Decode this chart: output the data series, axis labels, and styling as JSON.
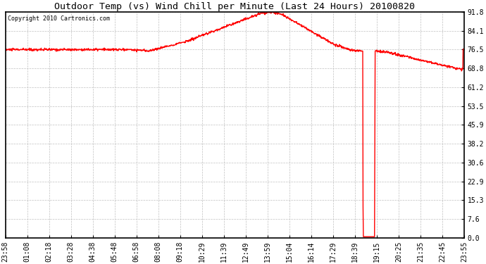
{
  "title": "Outdoor Temp (vs) Wind Chill per Minute (Last 24 Hours) 20100820",
  "copyright": "Copyright 2010 Cartronics.com",
  "yticks": [
    0.0,
    7.6,
    15.3,
    22.9,
    30.6,
    38.2,
    45.9,
    53.5,
    61.2,
    68.8,
    76.5,
    84.1,
    91.8
  ],
  "ymin": 0.0,
  "ymax": 91.8,
  "line_color": "#ff0000",
  "bg_color": "#ffffff",
  "grid_color": "#c0c0c0",
  "xtick_labels": [
    "23:58",
    "01:08",
    "02:18",
    "03:28",
    "04:38",
    "05:48",
    "06:58",
    "08:08",
    "09:18",
    "10:29",
    "11:39",
    "12:49",
    "13:59",
    "15:04",
    "16:14",
    "17:29",
    "18:39",
    "19:15",
    "20:25",
    "21:35",
    "22:45",
    "23:55"
  ],
  "title_fontsize": 9.5,
  "copyright_fontsize": 6,
  "tick_fontsize": 7,
  "linewidth": 1.0
}
